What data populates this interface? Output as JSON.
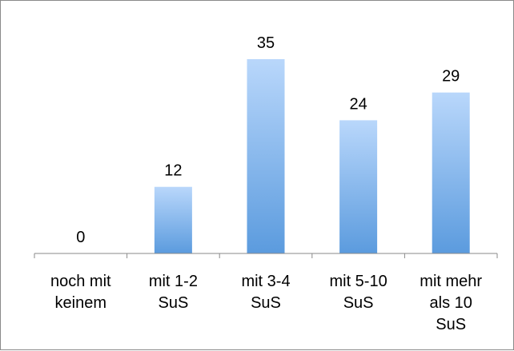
{
  "chart_data": {
    "type": "bar",
    "categories": [
      [
        "noch mit",
        "keinem"
      ],
      [
        "mit 1-2",
        "SuS"
      ],
      [
        "mit 3-4",
        "SuS"
      ],
      [
        "mit 5-10",
        "SuS"
      ],
      [
        "mit mehr",
        "als 10",
        "SuS"
      ]
    ],
    "values": [
      0,
      12,
      35,
      24,
      29
    ],
    "title": "",
    "xlabel": "",
    "ylabel": "",
    "ylim": [
      0,
      35
    ],
    "grid": false,
    "legend": "none",
    "data_labels": true,
    "colors": {
      "bar_top": "#b9d7fb",
      "bar_bottom": "#5b9bde",
      "axis": "#8a8a8a"
    }
  }
}
